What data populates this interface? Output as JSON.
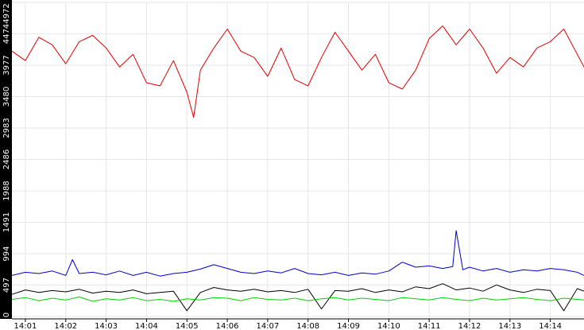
{
  "chart_data": {
    "type": "line",
    "title": "",
    "xlabel": "",
    "ylabel": "",
    "ylim": [
      0,
      4972
    ],
    "grid": true,
    "background": "#ffffff",
    "gridline_color": "#e6e6e6",
    "y_axis_band_color": "#000000",
    "y_ticks": [
      "0",
      "497",
      "994",
      "1491",
      "1988",
      "2486",
      "2983",
      "3480",
      "3977",
      "4474",
      "4972"
    ],
    "x_ticks": [
      "14:01",
      "14:02",
      "14:03",
      "14:04",
      "14:05",
      "14:06",
      "14:07",
      "14:08",
      "14:09",
      "14:10",
      "14:11",
      "14:12",
      "14:13",
      "14:14"
    ],
    "x_range": [
      "14:00:40",
      "14:14:50"
    ],
    "series": [
      {
        "color": "#e00000",
        "x": [
          "14:00:40",
          "14:01:00",
          "14:01:20",
          "14:01:40",
          "14:02:00",
          "14:02:20",
          "14:02:40",
          "14:03:00",
          "14:03:20",
          "14:03:40",
          "14:04:00",
          "14:04:20",
          "14:04:40",
          "14:05:00",
          "14:05:10",
          "14:05:20",
          "14:05:40",
          "14:06:00",
          "14:06:20",
          "14:06:40",
          "14:07:00",
          "14:07:20",
          "14:07:40",
          "14:08:00",
          "14:08:20",
          "14:08:40",
          "14:09:00",
          "14:09:20",
          "14:09:40",
          "14:10:00",
          "14:10:20",
          "14:10:40",
          "14:11:00",
          "14:11:20",
          "14:11:40",
          "14:12:00",
          "14:12:20",
          "14:12:40",
          "14:13:00",
          "14:13:20",
          "14:13:40",
          "14:14:00",
          "14:14:20",
          "14:14:40",
          "14:14:50"
        ],
        "values": [
          4200,
          4050,
          4420,
          4300,
          4000,
          4350,
          4450,
          4250,
          3950,
          4150,
          3700,
          3650,
          4050,
          3550,
          3150,
          3900,
          4250,
          4550,
          4200,
          4100,
          3800,
          4250,
          3750,
          3650,
          4100,
          4500,
          4200,
          3900,
          4150,
          3700,
          3600,
          3900,
          4400,
          4600,
          4300,
          4550,
          4250,
          3850,
          4100,
          3950,
          4250,
          4350,
          4550,
          4150,
          3950
        ]
      },
      {
        "color": "#0000d0",
        "x": [
          "14:00:40",
          "14:01:00",
          "14:01:20",
          "14:01:40",
          "14:02:00",
          "14:02:10",
          "14:02:20",
          "14:02:40",
          "14:03:00",
          "14:03:20",
          "14:03:40",
          "14:04:00",
          "14:04:20",
          "14:04:40",
          "14:05:00",
          "14:05:20",
          "14:05:40",
          "14:06:00",
          "14:06:20",
          "14:06:40",
          "14:07:00",
          "14:07:20",
          "14:07:40",
          "14:08:00",
          "14:08:20",
          "14:08:40",
          "14:09:00",
          "14:09:20",
          "14:09:40",
          "14:10:00",
          "14:10:20",
          "14:10:40",
          "14:11:00",
          "14:11:20",
          "14:11:35",
          "14:11:40",
          "14:11:50",
          "14:12:00",
          "14:12:20",
          "14:12:40",
          "14:13:00",
          "14:13:20",
          "14:13:40",
          "14:14:00",
          "14:14:20",
          "14:14:40",
          "14:14:50"
        ],
        "values": [
          650,
          700,
          680,
          720,
          650,
          900,
          680,
          700,
          660,
          720,
          650,
          700,
          640,
          680,
          700,
          750,
          820,
          760,
          700,
          680,
          720,
          690,
          760,
          680,
          660,
          700,
          650,
          690,
          670,
          720,
          860,
          780,
          800,
          760,
          790,
          1360,
          740,
          780,
          720,
          760,
          700,
          740,
          720,
          760,
          740,
          700,
          650
        ]
      },
      {
        "color": "#000000",
        "x": [
          "14:00:40",
          "14:01:00",
          "14:01:20",
          "14:01:40",
          "14:02:00",
          "14:02:20",
          "14:02:40",
          "14:03:00",
          "14:03:20",
          "14:03:40",
          "14:04:00",
          "14:04:20",
          "14:04:40",
          "14:05:00",
          "14:05:20",
          "14:05:40",
          "14:06:00",
          "14:06:20",
          "14:06:40",
          "14:07:00",
          "14:07:20",
          "14:07:40",
          "14:08:00",
          "14:08:20",
          "14:08:40",
          "14:09:00",
          "14:09:20",
          "14:09:40",
          "14:10:00",
          "14:10:20",
          "14:10:40",
          "14:11:00",
          "14:11:20",
          "14:11:40",
          "14:12:00",
          "14:12:20",
          "14:12:40",
          "14:13:00",
          "14:13:20",
          "14:13:40",
          "14:14:00",
          "14:14:20",
          "14:14:40",
          "14:14:50"
        ],
        "values": [
          350,
          420,
          380,
          410,
          390,
          430,
          370,
          400,
          380,
          420,
          360,
          380,
          400,
          90,
          380,
          460,
          420,
          400,
          430,
          390,
          410,
          380,
          430,
          120,
          410,
          400,
          440,
          380,
          420,
          390,
          470,
          440,
          520,
          420,
          450,
          400,
          500,
          420,
          380,
          430,
          410,
          90,
          440,
          400
        ]
      },
      {
        "color": "#00d000",
        "x": [
          "14:00:40",
          "14:01:00",
          "14:01:20",
          "14:01:40",
          "14:02:00",
          "14:02:20",
          "14:02:40",
          "14:03:00",
          "14:03:20",
          "14:03:40",
          "14:04:00",
          "14:04:20",
          "14:04:40",
          "14:05:00",
          "14:05:20",
          "14:05:40",
          "14:06:00",
          "14:06:20",
          "14:06:40",
          "14:07:00",
          "14:07:20",
          "14:07:40",
          "14:08:00",
          "14:08:20",
          "14:08:40",
          "14:09:00",
          "14:09:20",
          "14:09:40",
          "14:10:00",
          "14:10:20",
          "14:10:40",
          "14:11:00",
          "14:11:20",
          "14:11:40",
          "14:12:00",
          "14:12:20",
          "14:12:40",
          "14:13:00",
          "14:13:20",
          "14:13:40",
          "14:14:00",
          "14:14:20",
          "14:14:40",
          "14:14:50"
        ],
        "values": [
          270,
          300,
          250,
          290,
          260,
          310,
          240,
          280,
          260,
          300,
          250,
          270,
          240,
          280,
          260,
          300,
          290,
          250,
          300,
          270,
          260,
          290,
          250,
          280,
          300,
          260,
          290,
          270,
          250,
          300,
          280,
          260,
          300,
          270,
          250,
          290,
          260,
          280,
          300,
          270,
          250,
          290,
          270,
          260
        ]
      }
    ]
  }
}
